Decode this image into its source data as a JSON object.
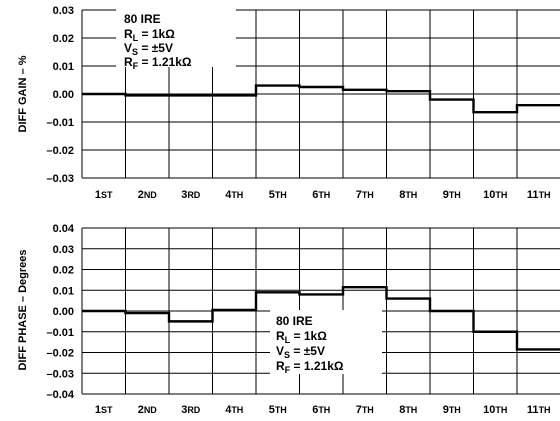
{
  "chart_data": [
    {
      "type": "line",
      "step": true,
      "categories": [
        "1ST",
        "2ND",
        "3RD",
        "4TH",
        "5TH",
        "6TH",
        "7TH",
        "8TH",
        "9TH",
        "10TH",
        "11TH"
      ],
      "values": [
        0.0,
        -0.0005,
        -0.0005,
        -0.0005,
        0.003,
        0.0025,
        0.0015,
        0.001,
        -0.002,
        -0.0065,
        -0.004
      ],
      "ylabel": "DIFF GAIN – %",
      "ylim": [
        -0.03,
        0.03
      ],
      "yticks": [
        "0.03",
        "0.02",
        "0.01",
        "0.00",
        "–0.01",
        "–0.02",
        "–0.03"
      ],
      "grid": true,
      "annotation": {
        "line1": "80 IRE",
        "rl_main": "R",
        "rl_sub": "L",
        "rl_rest": " = 1kΩ",
        "vs_main": "V",
        "vs_sub": "S",
        "vs_rest": " = ±5V",
        "rf_main": "R",
        "rf_sub": "F",
        "rf_rest": " = 1.21kΩ"
      }
    },
    {
      "type": "line",
      "step": true,
      "categories": [
        "1ST",
        "2ND",
        "3RD",
        "4TH",
        "5TH",
        "6TH",
        "7TH",
        "8TH",
        "9TH",
        "10TH",
        "11TH"
      ],
      "values": [
        0.0,
        -0.001,
        -0.005,
        0.0005,
        0.009,
        0.008,
        0.0115,
        0.006,
        0.0,
        -0.01,
        -0.0185
      ],
      "ylabel": "DIFF PHASE – Degrees",
      "ylim": [
        -0.04,
        0.04
      ],
      "yticks": [
        "0.04",
        "0.03",
        "0.02",
        "0.01",
        "0.00",
        "–0.01",
        "–0.02",
        "–0.03",
        "–0.04"
      ],
      "grid": true,
      "annotation": {
        "line1": "80 IRE",
        "rl_main": "R",
        "rl_sub": "L",
        "rl_rest": " = 1kΩ",
        "vs_main": "V",
        "vs_sub": "S",
        "vs_rest": " = ±5V",
        "rf_main": "R",
        "rf_sub": "F",
        "rf_rest": " = 1.21kΩ"
      }
    }
  ]
}
